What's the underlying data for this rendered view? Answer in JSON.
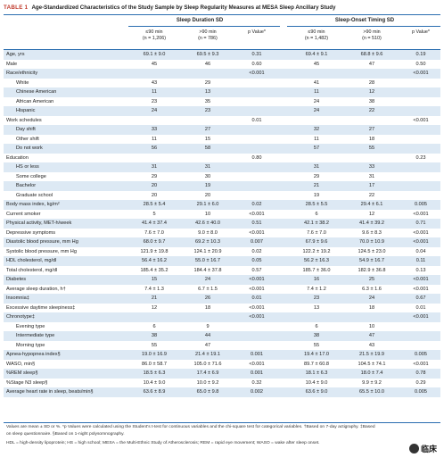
{
  "title": {
    "tag": "TABLE 1",
    "text": "Age-Standardized Characteristics of the Study Sample by Sleep Regularity Measures at MESA Sleep Ancillary Study"
  },
  "groups": [
    "Sleep Duration SD",
    "Sleep-Onset Timing SD"
  ],
  "columns": [
    {
      "l1": "≤90 min",
      "l2": "(n = 1,206)"
    },
    {
      "l1": ">90 min",
      "l2": "(n = 786)"
    },
    {
      "l1": "p Value*",
      "l2": ""
    },
    {
      "l1": "≤90 min",
      "l2": "(n = 1,482)"
    },
    {
      "l1": ">90 min",
      "l2": "(n = 510)"
    },
    {
      "l1": "p Value*",
      "l2": ""
    }
  ],
  "rows": [
    {
      "label": "Age, yrs",
      "vals": [
        "69.1 ± 9.0",
        "69.5 ± 9.3",
        "0.31",
        "69.4 ± 9.1",
        "68.8 ± 9.6",
        "0.19"
      ]
    },
    {
      "label": "Male",
      "vals": [
        "45",
        "46",
        "0.60",
        "45",
        "47",
        "0.50"
      ]
    },
    {
      "label": "Race/ethnicity",
      "vals": [
        "",
        "",
        "<0.001",
        "",
        "",
        "<0.001"
      ]
    },
    {
      "label": "White",
      "sub": true,
      "vals": [
        "43",
        "29",
        "",
        "41",
        "28",
        ""
      ]
    },
    {
      "label": "Chinese American",
      "sub": true,
      "vals": [
        "11",
        "13",
        "",
        "11",
        "12",
        ""
      ]
    },
    {
      "label": "African American",
      "sub": true,
      "vals": [
        "23",
        "35",
        "",
        "24",
        "38",
        ""
      ]
    },
    {
      "label": "Hispanic",
      "sub": true,
      "vals": [
        "24",
        "23",
        "",
        "24",
        "22",
        ""
      ]
    },
    {
      "label": "Work schedules",
      "vals": [
        "",
        "",
        "0.01",
        "",
        "",
        "<0.001"
      ]
    },
    {
      "label": "Day shift",
      "sub": true,
      "vals": [
        "33",
        "27",
        "",
        "32",
        "27",
        ""
      ]
    },
    {
      "label": "Other shift",
      "sub": true,
      "vals": [
        "11",
        "15",
        "",
        "11",
        "18",
        ""
      ]
    },
    {
      "label": "Do not work",
      "sub": true,
      "vals": [
        "56",
        "58",
        "",
        "57",
        "55",
        ""
      ]
    },
    {
      "label": "Education",
      "vals": [
        "",
        "",
        "0.80",
        "",
        "",
        "0.23"
      ]
    },
    {
      "label": "HS or less",
      "sub": true,
      "vals": [
        "31",
        "31",
        "",
        "31",
        "33",
        ""
      ]
    },
    {
      "label": "Some college",
      "sub": true,
      "vals": [
        "29",
        "30",
        "",
        "29",
        "31",
        ""
      ]
    },
    {
      "label": "Bachelor",
      "sub": true,
      "vals": [
        "20",
        "19",
        "",
        "21",
        "17",
        ""
      ]
    },
    {
      "label": "Graduate school",
      "sub": true,
      "vals": [
        "20",
        "20",
        "",
        "19",
        "22",
        ""
      ]
    },
    {
      "label": "Body mass index, kg/m²",
      "vals": [
        "28.5 ± 5.4",
        "29.1 ± 6.0",
        "0.02",
        "28.5 ± 5.5",
        "29.4 ± 6.1",
        "0.005"
      ]
    },
    {
      "label": "Current smoker",
      "vals": [
        "5",
        "10",
        "<0.001",
        "6",
        "12",
        "<0.001"
      ]
    },
    {
      "label": "Physical activity, MET-h/week",
      "vals": [
        "41.4 ± 37.4",
        "42.6 ± 40.0",
        "0.51",
        "42.1 ± 38.2",
        "41.4 ± 39.2",
        "0.71"
      ]
    },
    {
      "label": "Depressive symptoms",
      "vals": [
        "7.6 ± 7.0",
        "9.0 ± 8.0",
        "<0.001",
        "7.6 ± 7.0",
        "9.6 ± 8.3",
        "<0.001"
      ]
    },
    {
      "label": "Diastolic blood pressure, mm Hg",
      "vals": [
        "68.0 ± 9.7",
        "69.2 ± 10.3",
        "0.007",
        "67.9 ± 9.6",
        "70.0 ± 10.9",
        "<0.001"
      ]
    },
    {
      "label": "Systolic blood pressure, mm Hg",
      "vals": [
        "121.9 ± 19.8",
        "124.1 ± 20.9",
        "0.02",
        "122.2 ± 19.2",
        "124.5 ± 23.0",
        "0.04"
      ]
    },
    {
      "label": "HDL cholesterol, mg/dl",
      "vals": [
        "56.4 ± 16.2",
        "55.0 ± 16.7",
        "0.05",
        "56.2 ± 16.3",
        "54.9 ± 16.7",
        "0.11"
      ]
    },
    {
      "label": "Total cholesterol, mg/dl",
      "vals": [
        "185.4 ± 35.2",
        "184.4 ± 37.8",
        "0.57",
        "185.7 ± 36.0",
        "182.9 ± 36.8",
        "0.13"
      ]
    },
    {
      "label": "Diabetes",
      "vals": [
        "15",
        "24",
        "<0.001",
        "16",
        "25",
        "<0.001"
      ]
    },
    {
      "label": "Average sleep duration, h†",
      "vals": [
        "7.4 ± 1.3",
        "6.7 ± 1.5",
        "<0.001",
        "7.4 ± 1.2",
        "6.3 ± 1.6",
        "<0.001"
      ]
    },
    {
      "label": "Insomnia‡",
      "vals": [
        "21",
        "26",
        "0.01",
        "23",
        "24",
        "0.67"
      ]
    },
    {
      "label": "Excessive daytime sleepiness‡",
      "vals": [
        "12",
        "18",
        "<0.001",
        "13",
        "18",
        "0.01"
      ]
    },
    {
      "label": "Chronotype‡",
      "vals": [
        "",
        "",
        "<0.001",
        "",
        "",
        "<0.001"
      ]
    },
    {
      "label": "Evening type",
      "sub": true,
      "vals": [
        "6",
        "9",
        "",
        "6",
        "10",
        ""
      ]
    },
    {
      "label": "Intermediate type",
      "sub": true,
      "vals": [
        "38",
        "44",
        "",
        "38",
        "47",
        ""
      ]
    },
    {
      "label": "Morning type",
      "sub": true,
      "vals": [
        "55",
        "47",
        "",
        "55",
        "43",
        ""
      ]
    },
    {
      "label": "Apnea-hypopnea index§",
      "vals": [
        "19.0 ± 16.9",
        "21.4 ± 19.1",
        "0.001",
        "19.4 ± 17.0",
        "21.5 ± 19.9",
        "0.005"
      ]
    },
    {
      "label": "WASO, min§",
      "vals": [
        "86.0 ± 58.7",
        "105.0 ± 71.6",
        "<0.001",
        "89.7 ± 60.8",
        "104.5 ± 74.1",
        "<0.001"
      ]
    },
    {
      "label": "%REM sleep§",
      "vals": [
        "18.5 ± 6.3",
        "17.4 ± 6.9",
        "0.001",
        "18.1 ± 6.3",
        "18.0 ± 7.4",
        "0.78"
      ]
    },
    {
      "label": "%Stage N3 sleep§",
      "vals": [
        "10.4 ± 9.0",
        "10.0 ± 9.2",
        "0.32",
        "10.4 ± 9.0",
        "9.9 ± 9.2",
        "0.29"
      ]
    },
    {
      "label": "Average heart rate in sleep, beats/min§",
      "vals": [
        "63.6 ± 8.9",
        "65.0 ± 9.8",
        "0.002",
        "63.6 ± 9.0",
        "65.5 ± 10.0",
        "0.005"
      ]
    }
  ],
  "footnotes": [
    "Values are mean ± SD or %. *p Values were calculated using the Student's t-test for continuous variables and the chi-square test for categorical variables. †Based on 7-day actigraphy. ‡Based",
    "on sleep questionnaire. §Based on 1-night polysomnography.",
    "HDL = high-density lipoprotein; HS = high school; MESA = the Multi-Ethnic Study of Atherosclerosis; REM = rapid eye movement; WASO = wake after sleep onset."
  ],
  "watermark": "临床"
}
